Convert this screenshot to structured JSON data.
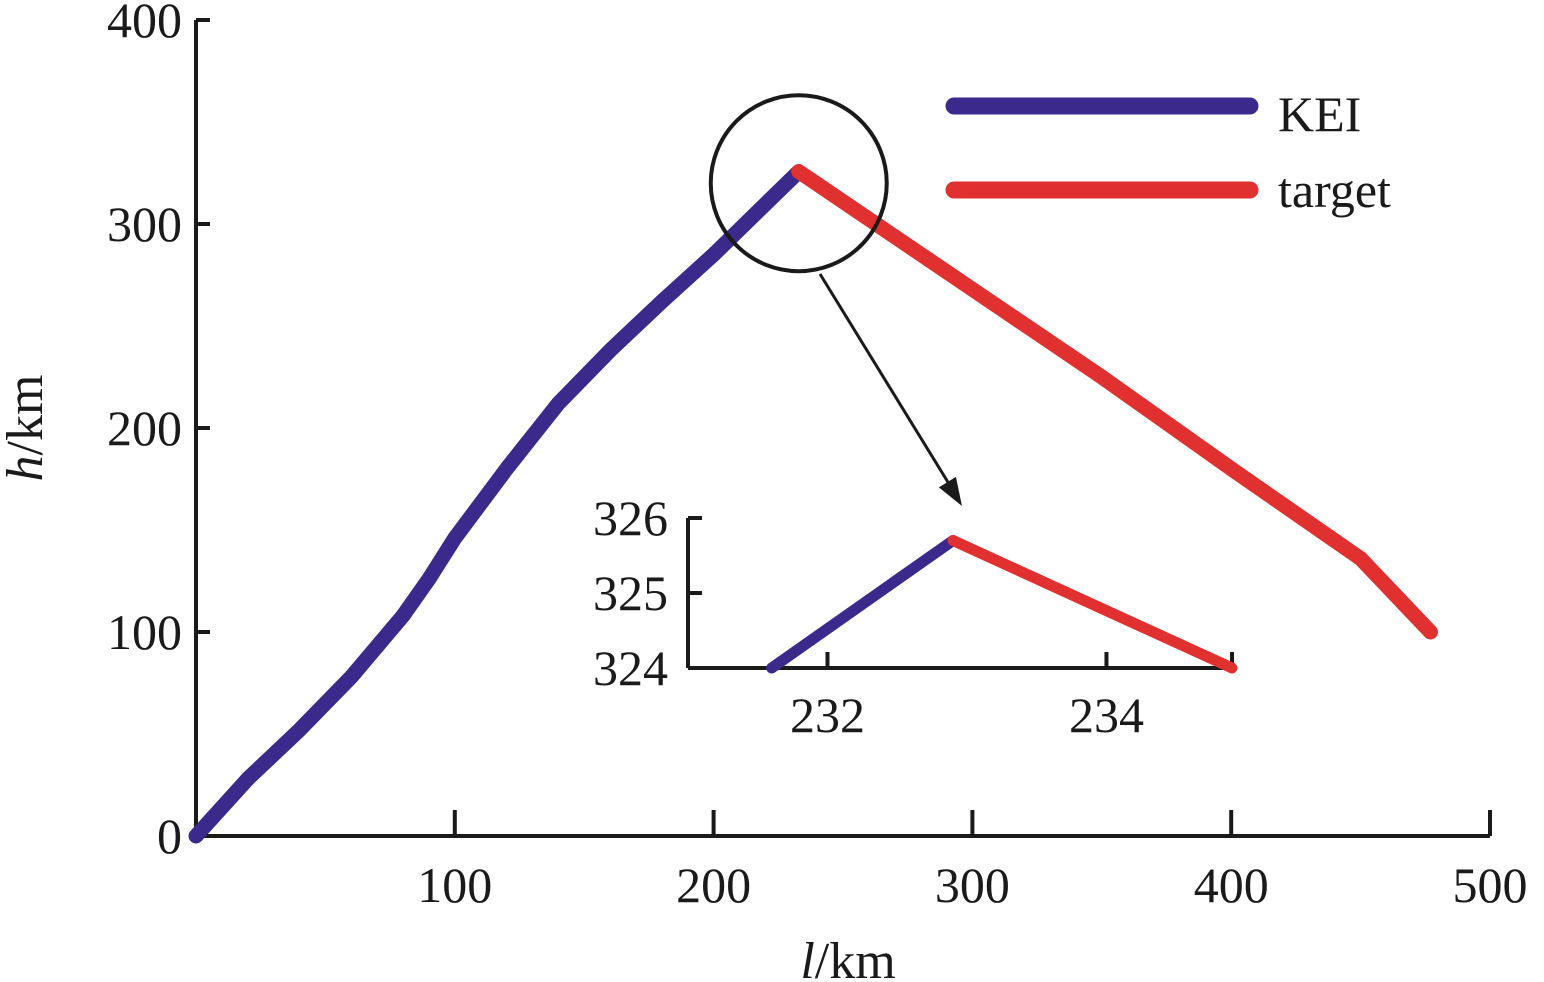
{
  "chart_data": {
    "type": "line",
    "xlabel_var": "l",
    "xlabel_unit": "/km",
    "ylabel_var": "h",
    "ylabel_unit": "/km",
    "xlim": [
      0,
      500
    ],
    "ylim": [
      0,
      400
    ],
    "x_ticks": [
      "100",
      "200",
      "300",
      "400",
      "500"
    ],
    "y_ticks": [
      "0",
      "100",
      "200",
      "300",
      "400"
    ],
    "grid": false,
    "legend_position": "top-right",
    "colors": {
      "KEI": "#3b2a8c",
      "target": "#e03030",
      "axis": "#1a1a1a"
    },
    "series": [
      {
        "name": "KEI",
        "x": [
          0,
          20,
          40,
          60,
          80,
          90,
          100,
          120,
          140,
          160,
          180,
          200,
          232.9
        ],
        "y": [
          0,
          28,
          52,
          78,
          108,
          126,
          146,
          180,
          212,
          238,
          262,
          285,
          325.7
        ]
      },
      {
        "name": "target",
        "x": [
          232.9,
          300,
          350,
          400,
          450,
          477
        ],
        "y": [
          325.7,
          268,
          225,
          180,
          136,
          100
        ]
      }
    ],
    "highlight_circle": {
      "center": [
        232.9,
        320
      ],
      "radius_x": 34
    },
    "inset": {
      "xlim": [
        231.0,
        234.9
      ],
      "ylim": [
        324,
        326
      ],
      "x_ticks": [
        "232",
        "234"
      ],
      "y_ticks": [
        "324",
        "325",
        "326"
      ],
      "series": [
        {
          "name": "KEI",
          "x": [
            231.6,
            232.9
          ],
          "y": [
            324.0,
            325.7
          ]
        },
        {
          "name": "target",
          "x": [
            232.9,
            234.9
          ],
          "y": [
            325.7,
            324.0
          ]
        }
      ]
    }
  }
}
